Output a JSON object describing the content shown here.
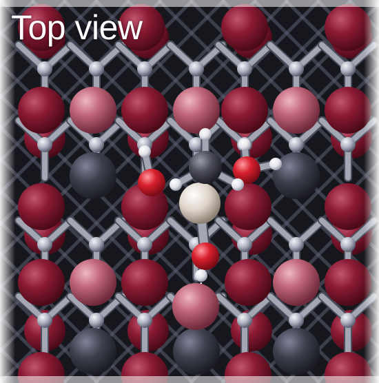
{
  "label": {
    "text": "Top view"
  },
  "colors": {
    "bond": "#a3a7b4",
    "bond_shadow": "#4b4e5c",
    "lattice_light_atom": "#c8c9d4",
    "dark_red_atom": "#7a1328",
    "pink_atom": "#c06579",
    "dark_gray_atom": "#3d3f4c",
    "oxygen": "#cc1f2f",
    "hydrogen": "#ecedf2",
    "carbon": "#4b4c58",
    "metal_center": "#ddd2c7",
    "background": "#ffffff"
  }
}
